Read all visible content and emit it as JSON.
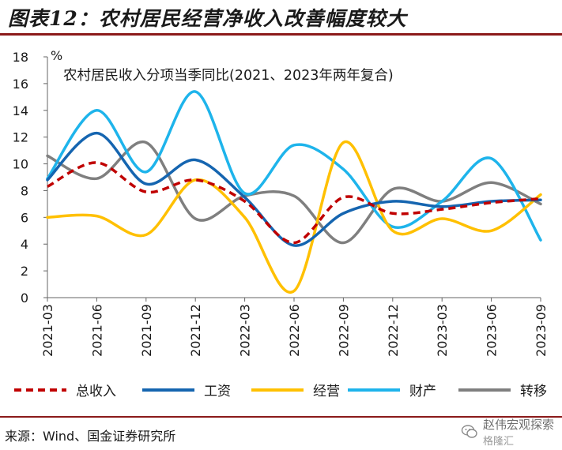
{
  "header": {
    "title": "图表12：农村居民经营净收入改善幅度较大"
  },
  "footer": {
    "source": "来源：Wind、国金证券研究所"
  },
  "watermark": {
    "account": "赵伟宏观探索",
    "sub": "格隆汇"
  },
  "chart_data": {
    "type": "line",
    "title": "农村居民收入分项当季同比(2021、2023年两年复合)",
    "ylabel": "%",
    "xlabel": "",
    "ylim": [
      0,
      18
    ],
    "yticks": [
      0,
      2,
      4,
      6,
      8,
      10,
      12,
      14,
      16,
      18
    ],
    "grid": false,
    "legend_position": "bottom",
    "categories": [
      "2021-03",
      "2021-06",
      "2021-09",
      "2021-12",
      "2022-03",
      "2022-06",
      "2022-09",
      "2022-12",
      "2023-03",
      "2023-06",
      "2023-09"
    ],
    "series": [
      {
        "name": "总收入",
        "color": "#c00000",
        "dash": true,
        "values": [
          8.3,
          10.1,
          7.9,
          8.8,
          7.2,
          4.1,
          7.5,
          6.3,
          6.6,
          7.1,
          7.4
        ]
      },
      {
        "name": "工资",
        "color": "#1565b0",
        "dash": false,
        "values": [
          8.8,
          12.3,
          8.5,
          10.3,
          7.5,
          3.9,
          6.3,
          7.2,
          6.8,
          7.2,
          7.3
        ]
      },
      {
        "name": "经营",
        "color": "#ffc000",
        "dash": false,
        "values": [
          6.0,
          6.1,
          4.7,
          8.8,
          6.0,
          0.5,
          11.6,
          5.0,
          5.9,
          5.0,
          7.7
        ]
      },
      {
        "name": "财产",
        "color": "#1eb4eb",
        "dash": false,
        "values": [
          8.9,
          14.0,
          9.4,
          15.4,
          7.8,
          11.4,
          9.6,
          5.3,
          7.2,
          10.4,
          4.3
        ]
      },
      {
        "name": "转移",
        "color": "#7f7f7f",
        "dash": false,
        "values": [
          10.6,
          8.9,
          11.6,
          5.9,
          7.6,
          7.6,
          4.1,
          8.1,
          7.2,
          8.6,
          7.0
        ]
      }
    ]
  }
}
